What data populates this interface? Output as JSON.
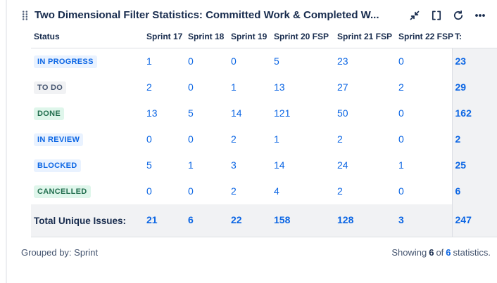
{
  "header": {
    "title": "Two Dimensional Filter Statistics: Committed Work & Completed W...",
    "icons": [
      {
        "name": "drag-handle-icon"
      },
      {
        "name": "collapse-icon"
      },
      {
        "name": "expand-icon"
      },
      {
        "name": "refresh-icon"
      },
      {
        "name": "more-icon"
      }
    ]
  },
  "table": {
    "columns": [
      "Status",
      "Sprint 17",
      "Sprint 18",
      "Sprint 19",
      "Sprint 20 FSP",
      "Sprint 21 FSP",
      "Sprint 22 FSP",
      "T:"
    ],
    "rows": [
      {
        "status": "IN PROGRESS",
        "variant": "blue",
        "values": [
          1,
          0,
          0,
          5,
          23,
          0
        ],
        "total": 23
      },
      {
        "status": "TO DO",
        "variant": "gray",
        "values": [
          2,
          0,
          1,
          13,
          27,
          2
        ],
        "total": 29
      },
      {
        "status": "DONE",
        "variant": "green",
        "values": [
          13,
          5,
          14,
          121,
          50,
          0
        ],
        "total": 162
      },
      {
        "status": "IN REVIEW",
        "variant": "blue",
        "values": [
          0,
          0,
          2,
          1,
          2,
          0
        ],
        "total": 2
      },
      {
        "status": "BLOCKED",
        "variant": "blue",
        "values": [
          5,
          1,
          3,
          14,
          24,
          1
        ],
        "total": 25
      },
      {
        "status": "CANCELLED",
        "variant": "green",
        "values": [
          0,
          0,
          2,
          4,
          2,
          0
        ],
        "total": 6
      }
    ],
    "totals": {
      "label": "Total Unique Issues:",
      "values": [
        21,
        6,
        22,
        158,
        128,
        3
      ],
      "total": 247
    }
  },
  "footer": {
    "grouped_by": "Grouped by: Sprint",
    "showing": {
      "text_before": "Showing",
      "count_shown": "6",
      "text_mid": "of",
      "count_total": "6",
      "text_after": "statistics."
    }
  },
  "colors": {
    "accent_blue": "#0C66E4",
    "heading_text": "#172B4D",
    "muted_text": "#44546F",
    "badge_blue_bg": "#E9F2FF",
    "badge_blue_text": "#0C66E4",
    "badge_gray_bg": "#F1F2F4",
    "badge_gray_text": "#44546F",
    "badge_green_bg": "#DFF6EB",
    "badge_green_text": "#216E4E",
    "total_column_bg": "#F1F2F4",
    "border": "#DCDFE4"
  }
}
